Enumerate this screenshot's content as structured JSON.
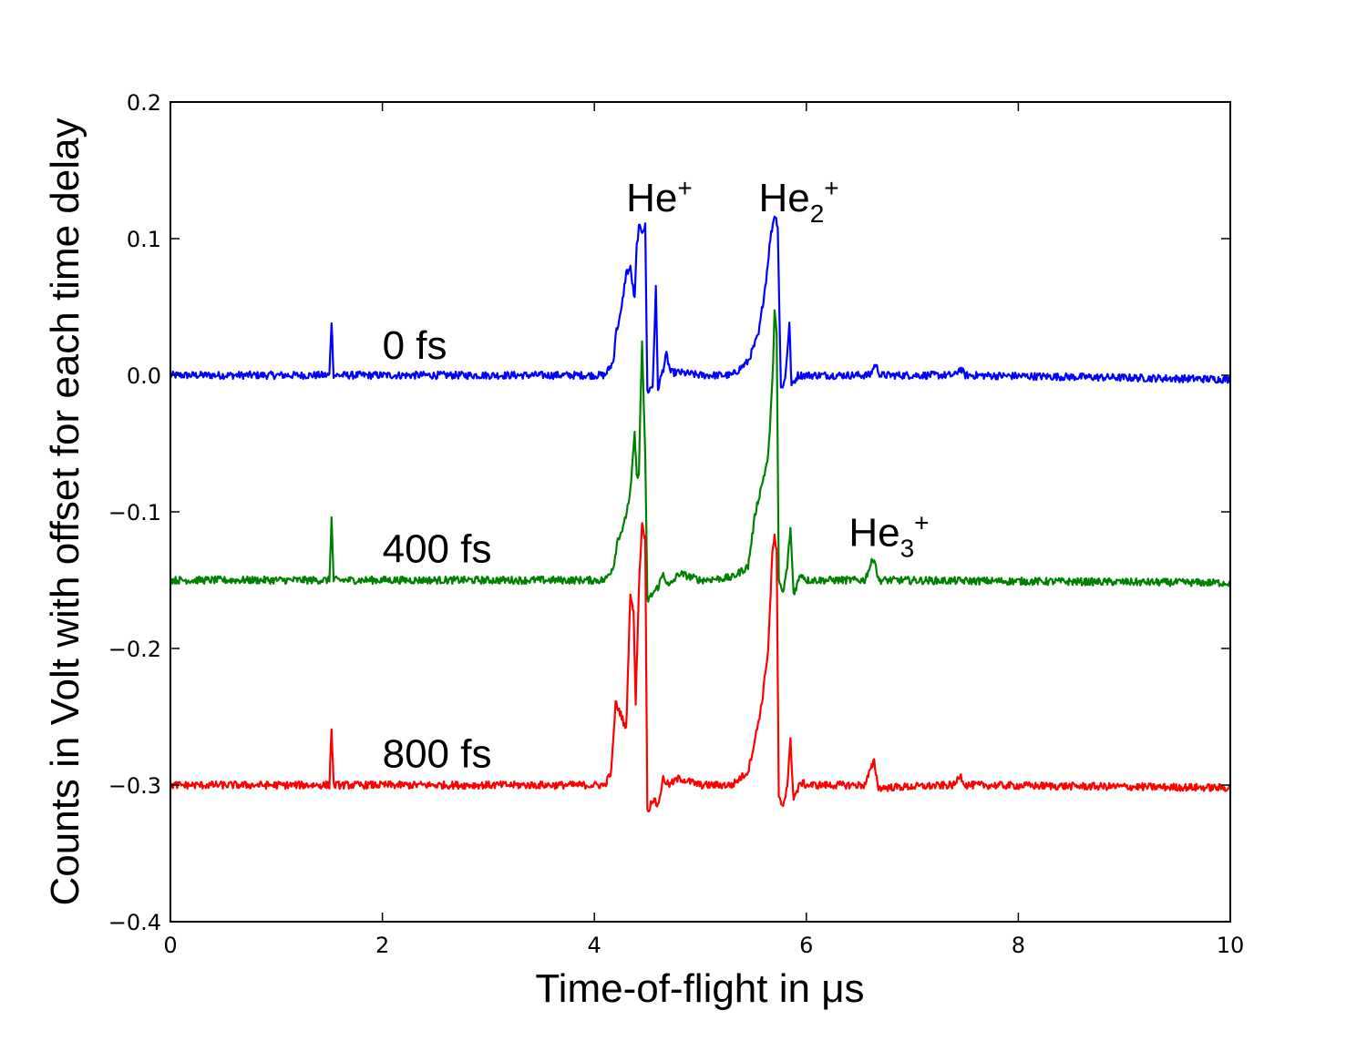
{
  "chart_data": {
    "type": "line",
    "xlabel": "Time-of-flight in μs",
    "ylabel": "Counts in Volt with offset for each time delay",
    "xlim": [
      0,
      10
    ],
    "ylim": [
      -0.4,
      0.2
    ],
    "x_ticks": [
      0,
      2,
      4,
      6,
      8,
      10
    ],
    "y_ticks": [
      0.2,
      0.1,
      0.0,
      -0.1,
      -0.2,
      -0.3,
      -0.4
    ],
    "x_tick_labels": [
      "0",
      "2",
      "4",
      "6",
      "8",
      "10"
    ],
    "y_tick_labels": [
      "0.2",
      "0.1",
      "0.0",
      "−0.1",
      "−0.2",
      "−0.3",
      "−0.4"
    ],
    "grid": false,
    "series": [
      {
        "name": "0 fs",
        "color": "#0000ff",
        "offset": 0.0,
        "points": [
          [
            0,
            0
          ],
          [
            1.5,
            0
          ],
          [
            1.52,
            0.04
          ],
          [
            1.54,
            0
          ],
          [
            4.1,
            0
          ],
          [
            4.18,
            0.01
          ],
          [
            4.2,
            0.03
          ],
          [
            4.25,
            0.045
          ],
          [
            4.3,
            0.075
          ],
          [
            4.34,
            0.078
          ],
          [
            4.38,
            0.055
          ],
          [
            4.4,
            0.095
          ],
          [
            4.42,
            0.108
          ],
          [
            4.45,
            0.106
          ],
          [
            4.48,
            0.109
          ],
          [
            4.5,
            -0.012
          ],
          [
            4.55,
            -0.008
          ],
          [
            4.58,
            0.063
          ],
          [
            4.6,
            -0.01
          ],
          [
            4.65,
            0.005
          ],
          [
            4.68,
            0.015
          ],
          [
            4.72,
            0.002
          ],
          [
            4.8,
            0.002
          ],
          [
            5.0,
            0
          ],
          [
            5.3,
            0
          ],
          [
            5.45,
            0.01
          ],
          [
            5.55,
            0.03
          ],
          [
            5.62,
            0.07
          ],
          [
            5.66,
            0.1
          ],
          [
            5.7,
            0.118
          ],
          [
            5.73,
            0.11
          ],
          [
            5.76,
            -0.01
          ],
          [
            5.8,
            -0.003
          ],
          [
            5.84,
            0.038
          ],
          [
            5.86,
            -0.008
          ],
          [
            5.92,
            0
          ],
          [
            6.6,
            0
          ],
          [
            6.65,
            0.008
          ],
          [
            6.7,
            0
          ],
          [
            7.4,
            0
          ],
          [
            7.45,
            0.005
          ],
          [
            7.5,
            0
          ],
          [
            10,
            -0.003
          ]
        ]
      },
      {
        "name": "400 fs",
        "color": "#008000",
        "offset": -0.15,
        "points": [
          [
            0,
            -0.15
          ],
          [
            1.5,
            -0.15
          ],
          [
            1.52,
            -0.105
          ],
          [
            1.54,
            -0.15
          ],
          [
            4.1,
            -0.15
          ],
          [
            4.18,
            -0.14
          ],
          [
            4.22,
            -0.12
          ],
          [
            4.28,
            -0.11
          ],
          [
            4.34,
            -0.085
          ],
          [
            4.36,
            -0.065
          ],
          [
            4.38,
            -0.042
          ],
          [
            4.4,
            -0.075
          ],
          [
            4.42,
            -0.07
          ],
          [
            4.45,
            0.025
          ],
          [
            4.48,
            -0.06
          ],
          [
            4.5,
            -0.165
          ],
          [
            4.55,
            -0.16
          ],
          [
            4.6,
            -0.155
          ],
          [
            4.65,
            -0.145
          ],
          [
            4.7,
            -0.155
          ],
          [
            4.8,
            -0.145
          ],
          [
            5.0,
            -0.15
          ],
          [
            5.3,
            -0.148
          ],
          [
            5.45,
            -0.14
          ],
          [
            5.52,
            -0.1
          ],
          [
            5.58,
            -0.08
          ],
          [
            5.64,
            -0.06
          ],
          [
            5.68,
            -0.005
          ],
          [
            5.7,
            0.048
          ],
          [
            5.72,
            0.03
          ],
          [
            5.74,
            -0.15
          ],
          [
            5.78,
            -0.16
          ],
          [
            5.82,
            -0.14
          ],
          [
            5.85,
            -0.112
          ],
          [
            5.88,
            -0.16
          ],
          [
            5.95,
            -0.145
          ],
          [
            6.0,
            -0.15
          ],
          [
            6.55,
            -0.15
          ],
          [
            6.6,
            -0.14
          ],
          [
            6.64,
            -0.133
          ],
          [
            6.68,
            -0.15
          ],
          [
            10,
            -0.152
          ]
        ]
      },
      {
        "name": "800 fs",
        "color": "#ff0000",
        "offset": -0.3,
        "points": [
          [
            0,
            -0.3
          ],
          [
            1.5,
            -0.3
          ],
          [
            1.52,
            -0.258
          ],
          [
            1.54,
            -0.3
          ],
          [
            4.1,
            -0.3
          ],
          [
            4.16,
            -0.29
          ],
          [
            4.2,
            -0.24
          ],
          [
            4.25,
            -0.248
          ],
          [
            4.3,
            -0.26
          ],
          [
            4.34,
            -0.158
          ],
          [
            4.37,
            -0.175
          ],
          [
            4.39,
            -0.24
          ],
          [
            4.42,
            -0.155
          ],
          [
            4.45,
            -0.108
          ],
          [
            4.48,
            -0.12
          ],
          [
            4.5,
            -0.32
          ],
          [
            4.55,
            -0.31
          ],
          [
            4.6,
            -0.315
          ],
          [
            4.65,
            -0.295
          ],
          [
            4.7,
            -0.3
          ],
          [
            4.8,
            -0.295
          ],
          [
            5.0,
            -0.3
          ],
          [
            5.3,
            -0.3
          ],
          [
            5.45,
            -0.29
          ],
          [
            5.52,
            -0.265
          ],
          [
            5.58,
            -0.24
          ],
          [
            5.64,
            -0.2
          ],
          [
            5.68,
            -0.13
          ],
          [
            5.7,
            -0.118
          ],
          [
            5.72,
            -0.13
          ],
          [
            5.74,
            -0.31
          ],
          [
            5.78,
            -0.315
          ],
          [
            5.82,
            -0.3
          ],
          [
            5.85,
            -0.268
          ],
          [
            5.88,
            -0.31
          ],
          [
            5.95,
            -0.298
          ],
          [
            6.0,
            -0.3
          ],
          [
            6.55,
            -0.3
          ],
          [
            6.6,
            -0.29
          ],
          [
            6.64,
            -0.283
          ],
          [
            6.68,
            -0.302
          ],
          [
            7.4,
            -0.3
          ],
          [
            7.45,
            -0.292
          ],
          [
            7.5,
            -0.3
          ],
          [
            10,
            -0.302
          ]
        ]
      }
    ],
    "series_labels": [
      {
        "text": "0 fs",
        "x": 2.0,
        "y": 0.012
      },
      {
        "text": "400 fs",
        "x": 2.0,
        "y": -0.137
      },
      {
        "text": "800 fs",
        "x": 2.0,
        "y": -0.287
      }
    ],
    "peak_annotations": [
      {
        "base": "He",
        "sub": "",
        "sup": "+",
        "x": 4.3,
        "y": 0.12
      },
      {
        "base": "He",
        "sub": "2",
        "sup": "+",
        "x": 5.55,
        "y": 0.12
      },
      {
        "base": "He",
        "sub": "3",
        "sup": "+",
        "x": 6.4,
        "y": -0.125
      }
    ]
  }
}
